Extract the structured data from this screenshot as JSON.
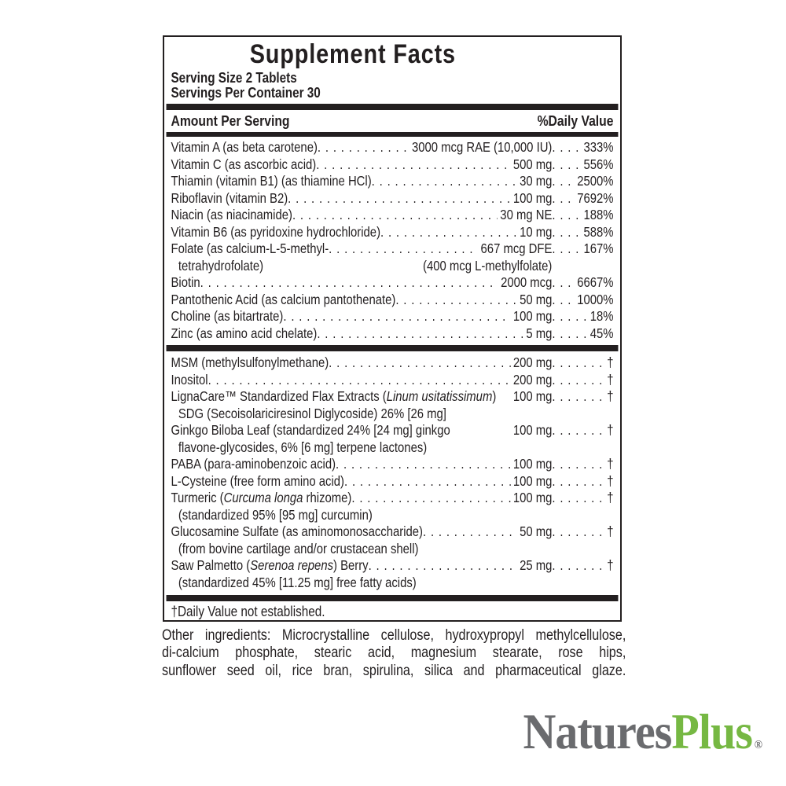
{
  "panel": {
    "title": "Supplement Facts",
    "serving_size": "Serving Size 2 Tablets",
    "servings_per_container": "Servings Per Container 30",
    "header": {
      "amount": "Amount Per Serving",
      "daily_value": "%Daily Value"
    },
    "sections": [
      {
        "rows": [
          {
            "name": [
              {
                "t": "Vitamin A (as beta carotene)"
              }
            ],
            "amount": "3000 mcg RAE (10,000 IU)",
            "dv": "333%"
          },
          {
            "name": [
              {
                "t": "Vitamin C (as ascorbic acid)"
              }
            ],
            "amount": "500 mg",
            "dv": "556%"
          },
          {
            "name": [
              {
                "t": "Thiamin (vitamin B1) (as thiamine HCl)"
              }
            ],
            "amount": "30 mg",
            "dv": "2500%"
          },
          {
            "name": [
              {
                "t": "Riboflavin (vitamin B2)"
              }
            ],
            "amount": "100 mg",
            "dv": "7692%"
          },
          {
            "name": [
              {
                "t": "Niacin (as niacinamide)"
              }
            ],
            "amount": "30 mg NE",
            "dv": "188%"
          },
          {
            "name": [
              {
                "t": "Vitamin B6 (as pyridoxine hydrochloride)"
              }
            ],
            "amount": "10 mg",
            "dv": "588%"
          },
          {
            "name": [
              {
                "t": "Folate (as calcium-L-5-methyl-"
              }
            ],
            "amount": "667 mcg DFE",
            "dv": "167%",
            "cont": "tetrahydrofolate)",
            "cont_note": "(400 mcg L-methylfolate)"
          },
          {
            "name": [
              {
                "t": "Biotin"
              }
            ],
            "amount": "2000 mcg",
            "dv": "6667%"
          },
          {
            "name": [
              {
                "t": "Pantothenic Acid (as calcium pantothenate)"
              }
            ],
            "amount": "50 mg",
            "dv": "1000%"
          },
          {
            "name": [
              {
                "t": "Choline (as bitartrate)"
              }
            ],
            "amount": "100 mg",
            "dv": "18%"
          },
          {
            "name": [
              {
                "t": "Zinc (as amino acid chelate)"
              }
            ],
            "amount": "5 mg",
            "dv": "45%"
          }
        ]
      },
      {
        "rows": [
          {
            "name": [
              {
                "t": "MSM (methylsulfonylmethane)"
              }
            ],
            "amount": "200 mg",
            "dv": "†"
          },
          {
            "name": [
              {
                "t": "Inositol"
              }
            ],
            "amount": "200 mg",
            "dv": "†"
          },
          {
            "name": [
              {
                "t": "LignaCare™ Standardized Flax Extracts ("
              },
              {
                "t": "Linum usitatissimum",
                "i": true
              },
              {
                "t": ")"
              }
            ],
            "amount": "100 mg",
            "dv": "†",
            "lead": false,
            "cont": "SDG (Secoisolariciresinol Diglycoside) 26% [26 mg]"
          },
          {
            "name": [
              {
                "t": "Ginkgo Biloba Leaf (standardized 24% [24 mg] ginkgo"
              }
            ],
            "amount": "100 mg",
            "dv": "†",
            "lead": false,
            "cont": "flavone-glycosides, 6% [6 mg] terpene lactones)"
          },
          {
            "name": [
              {
                "t": "PABA (para-aminobenzoic acid)"
              }
            ],
            "amount": "100 mg",
            "dv": "†"
          },
          {
            "name": [
              {
                "t": "L-Cysteine (free form amino acid)"
              }
            ],
            "amount": "100 mg",
            "dv": "†"
          },
          {
            "name": [
              {
                "t": "Turmeric ("
              },
              {
                "t": "Curcuma longa",
                "i": true
              },
              {
                "t": " rhizome)"
              }
            ],
            "amount": "100 mg",
            "dv": "†",
            "cont": "(standardized 95% [95 mg] curcumin)"
          },
          {
            "name": [
              {
                "t": "Glucosamine Sulfate (as aminomonosaccharide)"
              }
            ],
            "amount": "50 mg",
            "dv": "†",
            "cont": "(from bovine cartilage and/or crustacean shell)"
          },
          {
            "name": [
              {
                "t": "Saw Palmetto ("
              },
              {
                "t": "Serenoa repens",
                "i": true
              },
              {
                "t": ") Berry"
              }
            ],
            "amount": "25 mg",
            "dv": "†",
            "cont": "(standardized 45% [11.25 mg] free fatty acids)"
          }
        ]
      }
    ],
    "footnote": "†Daily Value not established."
  },
  "other_ingredients": {
    "lines": [
      "Other ingredients: Microcrystalline cellulose, hydroxypropyl methylcellulose,",
      "di-calcium phosphate, stearic acid, magnesium stearate, rose hips,",
      "sunflower seed oil, rice bran, spirulina, silica and pharmaceutical glaze."
    ]
  },
  "logo": {
    "natures": "Natures",
    "plus": "Plus",
    "reg": "®"
  },
  "colors": {
    "text": "#231f20",
    "logo_gray": "#6a6b6e",
    "logo_green": "#76b843"
  }
}
